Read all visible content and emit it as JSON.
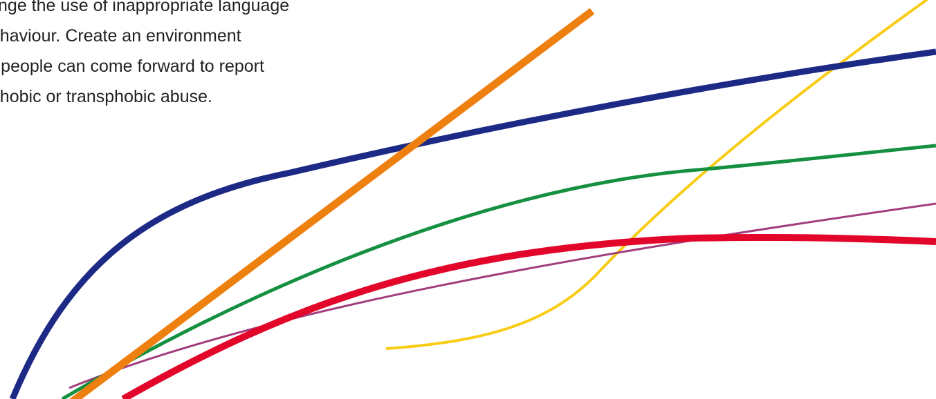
{
  "body_text": {
    "lines": [
      "llenge the use of inappropriate language",
      "behaviour. Create an environment",
      "re people can come forward to report",
      "ophobic or transphobic abuse."
    ]
  },
  "decoration": {
    "colors": {
      "navy": "#1c2a85",
      "orange": "#ee8010",
      "yellow": "#f8cc14",
      "green": "#159040",
      "red": "#e2062a",
      "magenta": "#a23d7c"
    }
  }
}
